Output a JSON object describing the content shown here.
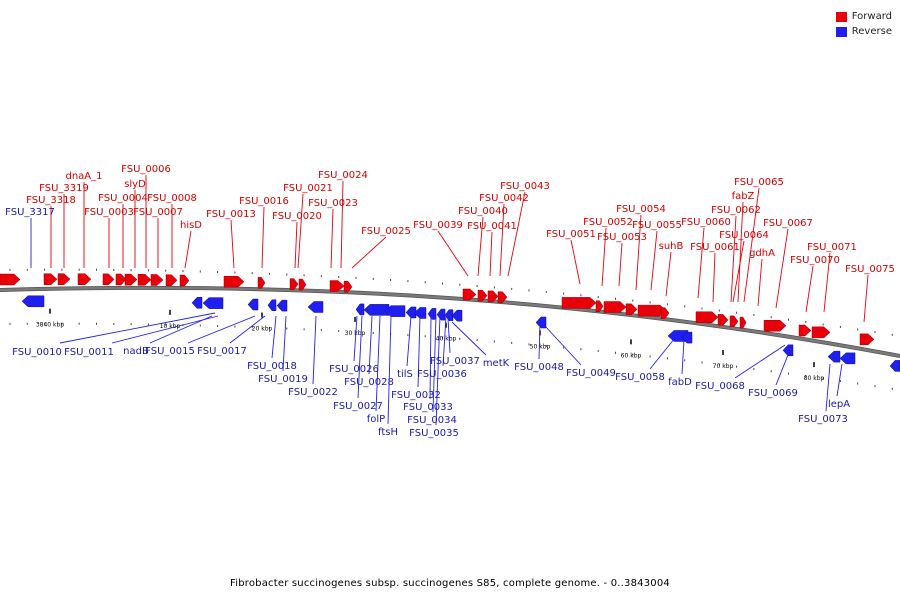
{
  "legend": {
    "forward": "Forward",
    "reverse": "Reverse"
  },
  "colors": {
    "forward": "#e8000b",
    "reverse": "#1f1ff0",
    "forward_label": "#d40000",
    "reverse_label": "#1a1aa8",
    "backbone": "#7a7a7a"
  },
  "caption": "Fibrobacter succinogenes subsp. succinogenes S85, complete genome. - 0..3843004",
  "scale_labels": [
    "3840 kbp",
    "10 kbp",
    "20 kbp",
    "30 kbp",
    "40 kbp",
    "50 kbp",
    "60 kbp",
    "70 kbp",
    "80 kbp"
  ],
  "forward_genes": [
    "dnaA_1",
    "FSU_3319",
    "FSU_3318",
    "FSU_0003",
    "slyD",
    "FSU_0004",
    "FSU_0006",
    "FSU_0007",
    "FSU_0008",
    "hisD",
    "FSU_0013",
    "FSU_0016",
    "FSU_0021",
    "FSU_0020",
    "FSU_0024",
    "FSU_0023",
    "FSU_0025",
    "FSU_0039",
    "FSU_0040",
    "FSU_0041",
    "FSU_0042",
    "FSU_0043",
    "FSU_0051",
    "FSU_0052",
    "FSU_0053",
    "FSU_0054",
    "FSU_0055",
    "suhB",
    "FSU_0060",
    "FSU_0061",
    "FSU_0065",
    "fabZ",
    "FSU_0062",
    "FSU_0064",
    "gdhA",
    "FSU_0067",
    "FSU_0071",
    "FSU_0070",
    "FSU_0075"
  ],
  "reverse_genes": [
    "FSU_3317",
    "FSU_0010",
    "FSU_0011",
    "nadB",
    "FSU_0015",
    "FSU_0017",
    "FSU_0018",
    "FSU_0019",
    "FSU_0022",
    "FSU_0026",
    "FSU_0028",
    "FSU_0027",
    "folP",
    "ftsH",
    "tilS",
    "FSU_0032",
    "FSU_0033",
    "FSU_0034",
    "FSU_0035",
    "FSU_0036",
    "FSU_0037",
    "metK",
    "FSU_0048",
    "FSU_0049",
    "FSU_0058",
    "fabD",
    "FSU_0068",
    "FSU_0069",
    "lepA",
    "FSU_0073"
  ]
}
